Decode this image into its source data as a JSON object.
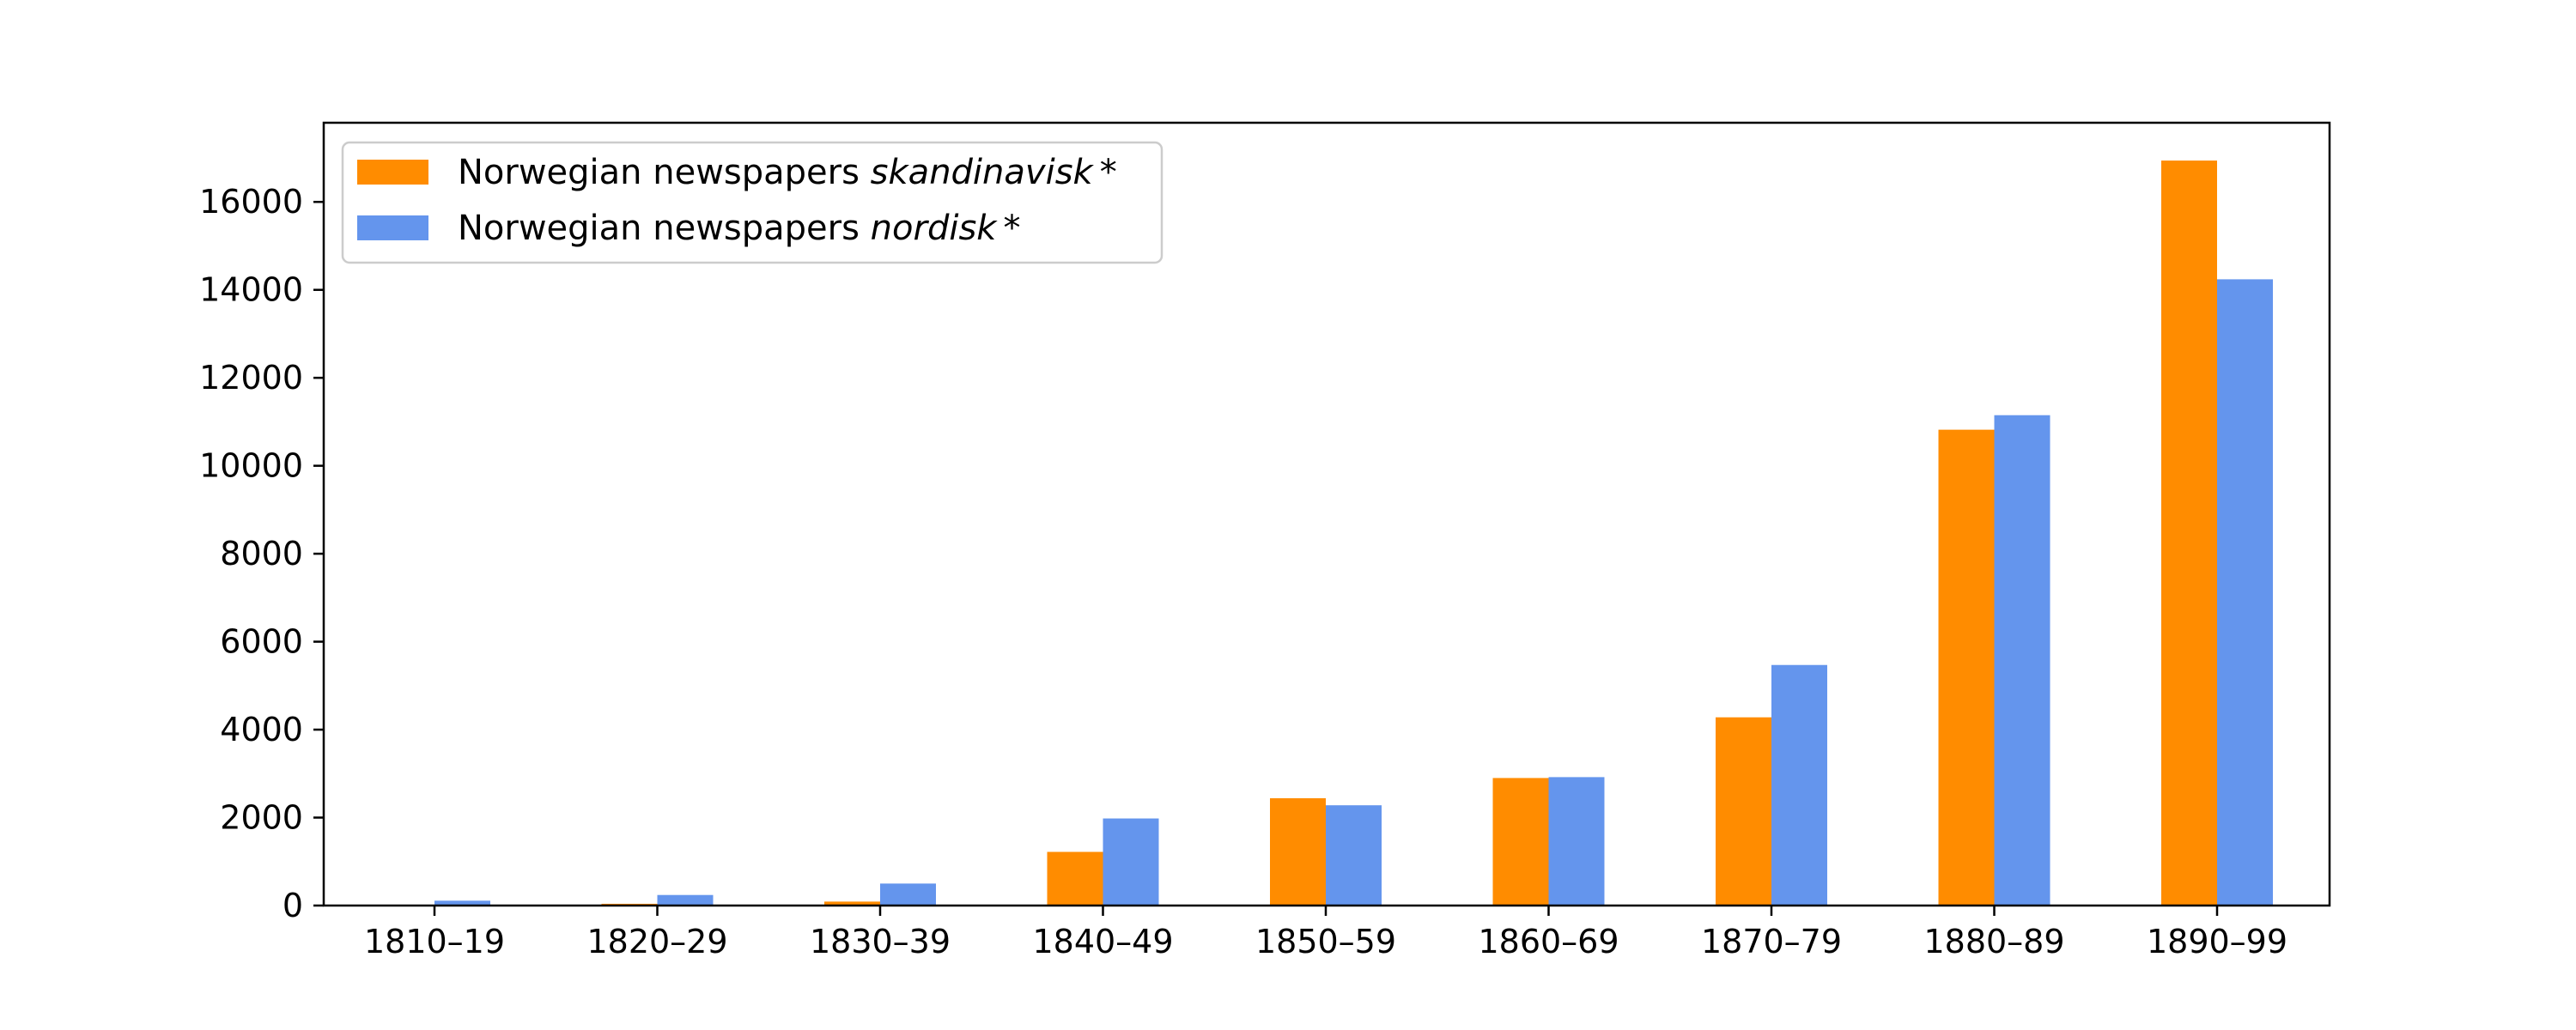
{
  "chart_data": {
    "type": "bar",
    "categories": [
      "1810–19",
      "1820–29",
      "1830–39",
      "1840–49",
      "1850–59",
      "1860–69",
      "1870–79",
      "1880–89",
      "1890–99"
    ],
    "series": [
      {
        "name": "Norwegian newspapers skandinavisk*",
        "legend_prefix": "Norwegian newspapers ",
        "legend_term": "skandinavisk",
        "legend_suffix": "*",
        "color": "#ff8c00",
        "values": [
          10,
          40,
          90,
          1220,
          2440,
          2900,
          4280,
          10820,
          16940
        ]
      },
      {
        "name": "Norwegian newspapers nordisk*",
        "legend_prefix": "Norwegian newspapers ",
        "legend_term": "nordisk",
        "legend_suffix": "*",
        "color": "#6495ed",
        "values": [
          110,
          240,
          500,
          1980,
          2280,
          2920,
          5470,
          11150,
          14240
        ]
      }
    ],
    "yticks": [
      0,
      2000,
      4000,
      6000,
      8000,
      10000,
      12000,
      14000,
      16000
    ],
    "ylim": [
      0,
      17800
    ],
    "grid": false,
    "legend_position": "top-left",
    "title": "",
    "xlabel": "",
    "ylabel": ""
  }
}
